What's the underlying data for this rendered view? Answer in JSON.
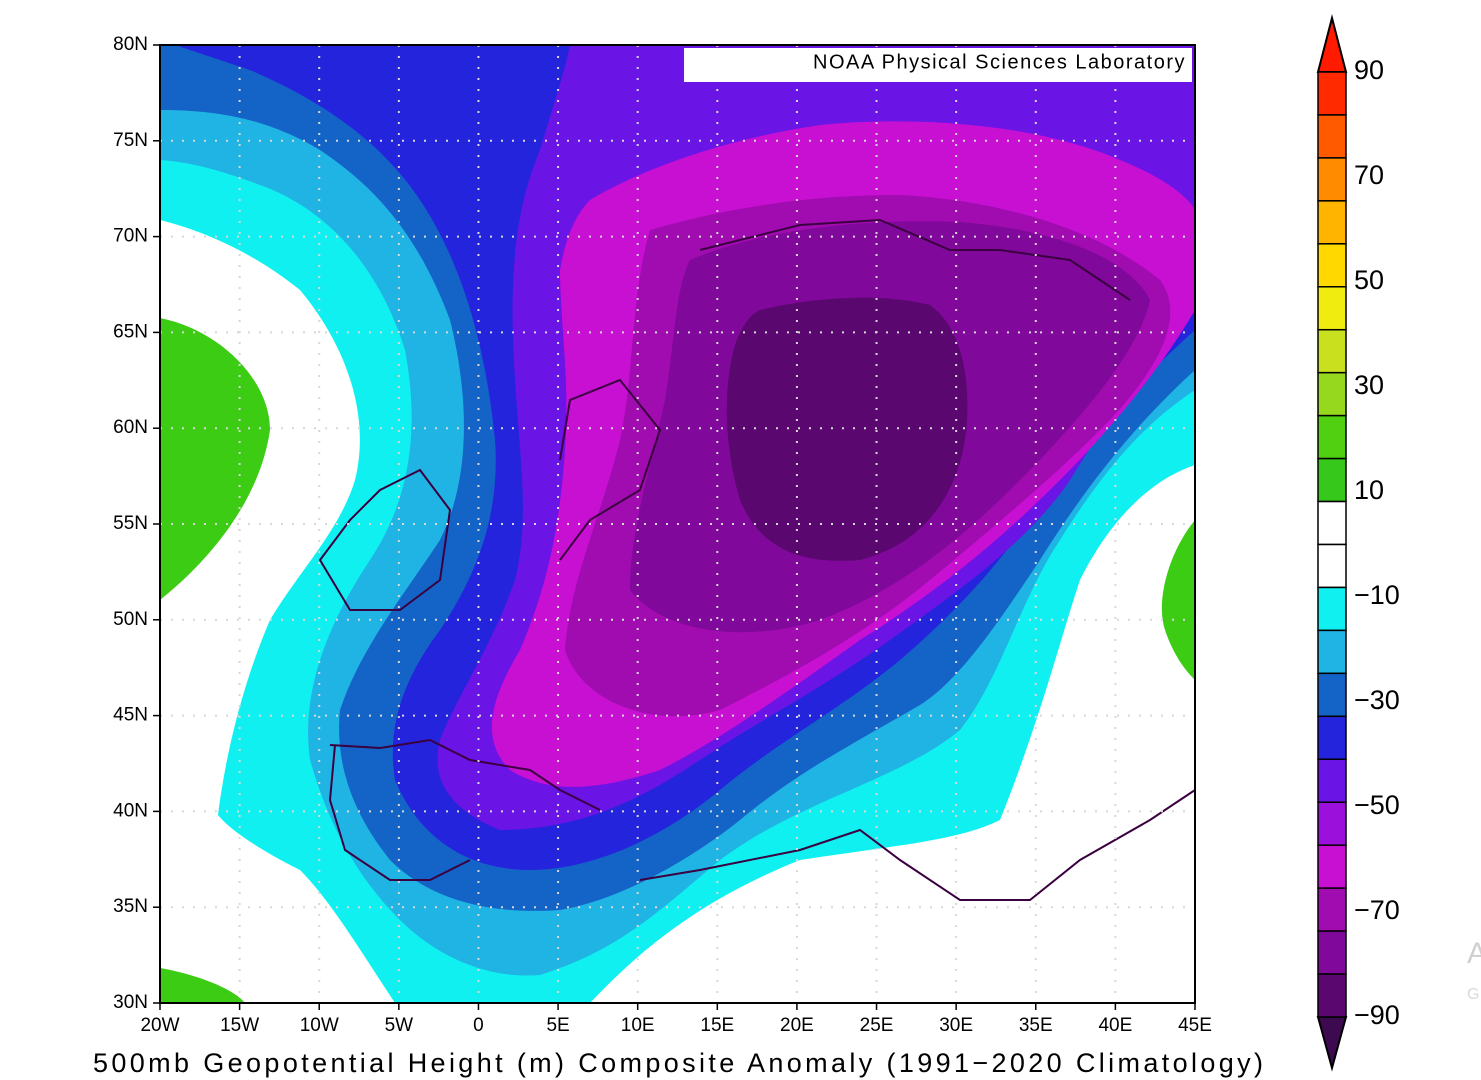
{
  "map": {
    "credit": "NOAA Physical Sciences Laboratory",
    "caption": "500mb Geopotential Height (m) Composite Anomaly (1991−2020 Climatology)",
    "lat_labels": [
      "80N",
      "75N",
      "70N",
      "65N",
      "60N",
      "55N",
      "50N",
      "45N",
      "40N",
      "35N",
      "30N"
    ],
    "lon_labels": [
      "20W",
      "15W",
      "10W",
      "5W",
      "0",
      "5E",
      "10E",
      "15E",
      "20E",
      "25E",
      "30E",
      "35E",
      "40E",
      "45E"
    ]
  },
  "colorbar": {
    "labels": [
      "90",
      "70",
      "50",
      "30",
      "10",
      "−10",
      "−30",
      "−50",
      "−70",
      "−90"
    ],
    "colors": [
      "#ff2a00",
      "#ff5a00",
      "#ff8c00",
      "#ffb400",
      "#ffd800",
      "#f0ec10",
      "#c8e01e",
      "#96d81e",
      "#50d010",
      "#36c81a",
      "#ffffff",
      "#ffffff",
      "#10f0f0",
      "#20b4e4",
      "#1464c8",
      "#2424dc",
      "#6a14e6",
      "#9c10dc",
      "#c810d2",
      "#a00cb0",
      "#80089a",
      "#5a0870"
    ],
    "over_color": "#ff1a00",
    "under_color": "#3d0a50"
  },
  "watermark": [
    "A",
    "G"
  ]
}
